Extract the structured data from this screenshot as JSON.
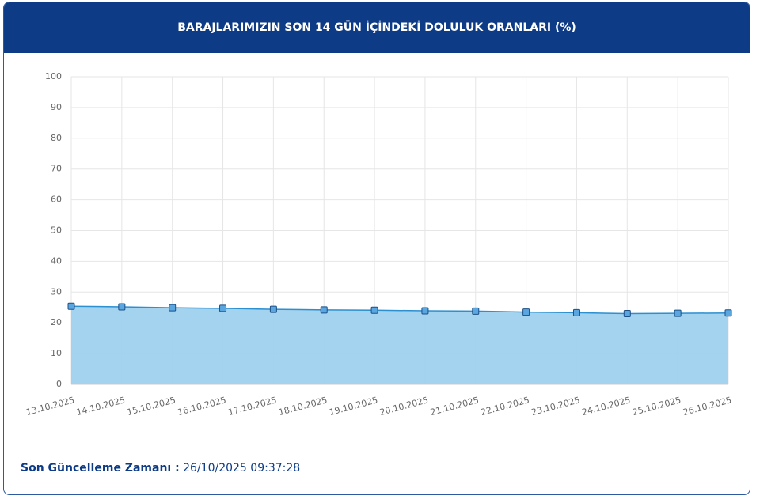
{
  "chart_data": {
    "type": "area",
    "title": "BARAJLARIMIZIN SON 14 GÜN İÇİNDEKİ DOLULUK ORANLARI (%)",
    "categories": [
      "13.10.2025",
      "14.10.2025",
      "15.10.2025",
      "16.10.2025",
      "17.10.2025",
      "18.10.2025",
      "19.10.2025",
      "20.10.2025",
      "21.10.2025",
      "22.10.2025",
      "23.10.2025",
      "24.10.2025",
      "25.10.2025",
      "26.10.2025"
    ],
    "values": [
      25.4,
      25.2,
      24.9,
      24.7,
      24.4,
      24.2,
      24.1,
      23.9,
      23.8,
      23.5,
      23.3,
      23.0,
      23.1,
      23.2
    ],
    "color": "#9ed1ee",
    "line_color": "#2b8fd0",
    "marker_color": "#5aa6e0",
    "ylim": [
      0,
      100
    ],
    "yticks": [
      0,
      10,
      20,
      30,
      40,
      50,
      60,
      70,
      80,
      90,
      100
    ],
    "grid": true
  },
  "footer": {
    "label": "Son Güncelleme Zamanı :",
    "value": "26/10/2025 09:37:28"
  }
}
